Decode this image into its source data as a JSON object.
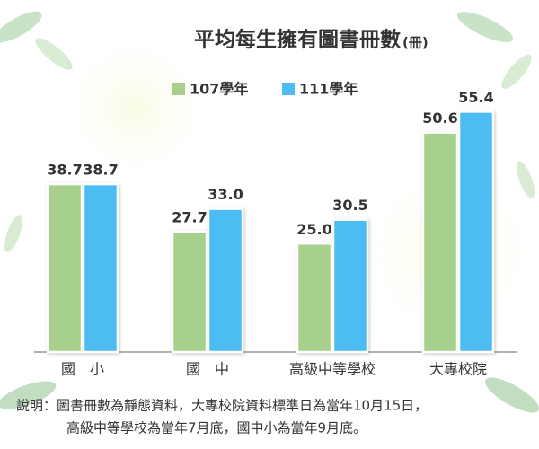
{
  "chart_data": {
    "type": "bar",
    "title": "平均每生擁有圖書冊數",
    "unit": "(冊)",
    "categories": [
      "國　小",
      "國　中",
      "高級中等學校",
      "大專校院"
    ],
    "series": [
      {
        "name": "107學年",
        "color": "#a8d08d",
        "values": [
          38.7,
          27.7,
          25.0,
          50.6
        ],
        "value_labels": [
          "38.7",
          "27.7",
          "25.0",
          "50.6"
        ]
      },
      {
        "name": "111學年",
        "color": "#4ebcf2",
        "values": [
          38.7,
          33.0,
          30.5,
          55.4
        ],
        "value_labels": [
          "38.7",
          "33.0",
          "30.5",
          "55.4"
        ]
      }
    ],
    "note": [
      "說明：圖書冊數為靜態資料，大專校院資料標準日為當年10月15日，",
      "高級中等學校為當年7月底，國中小為當年9月底。"
    ]
  }
}
